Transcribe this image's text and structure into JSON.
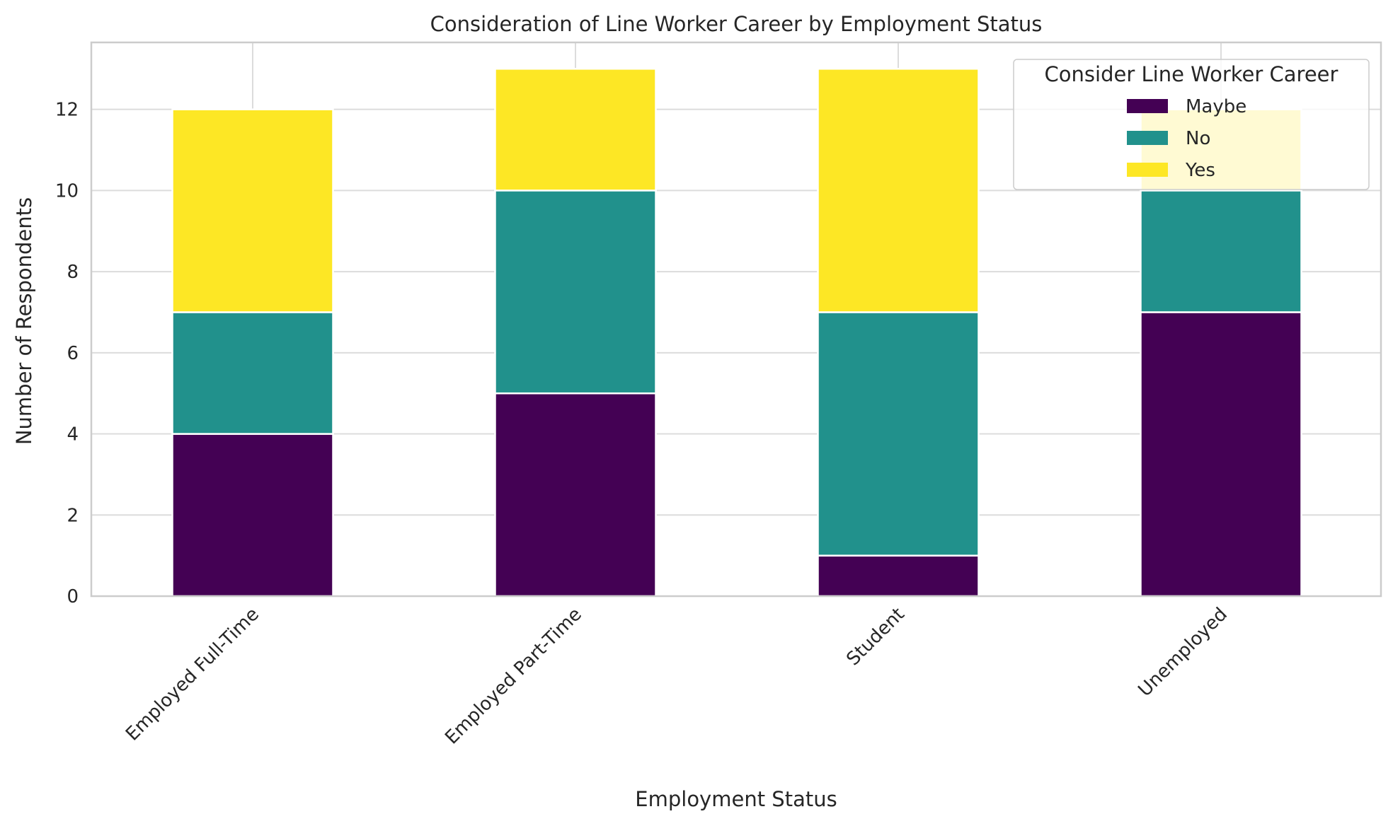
{
  "chart_data": {
    "type": "bar",
    "stacked": true,
    "title": "Consideration of Line Worker Career by Employment Status",
    "xlabel": "Employment Status",
    "ylabel": "Number of Respondents",
    "categories": [
      "Employed Full-Time",
      "Employed Part-Time",
      "Student",
      "Unemployed"
    ],
    "series": [
      {
        "name": "Maybe",
        "color": "#440154",
        "values": [
          4,
          5,
          1,
          7
        ]
      },
      {
        "name": "No",
        "color": "#21918c",
        "values": [
          3,
          5,
          6,
          3
        ]
      },
      {
        "name": "Yes",
        "color": "#fde725",
        "values": [
          5,
          3,
          6,
          2
        ]
      }
    ],
    "ylim": [
      0,
      13.65
    ],
    "yticks": [
      0,
      2,
      4,
      6,
      8,
      10,
      12
    ],
    "legend": {
      "title": "Consider Line Worker Career",
      "position": "top-right"
    },
    "grid": true
  }
}
